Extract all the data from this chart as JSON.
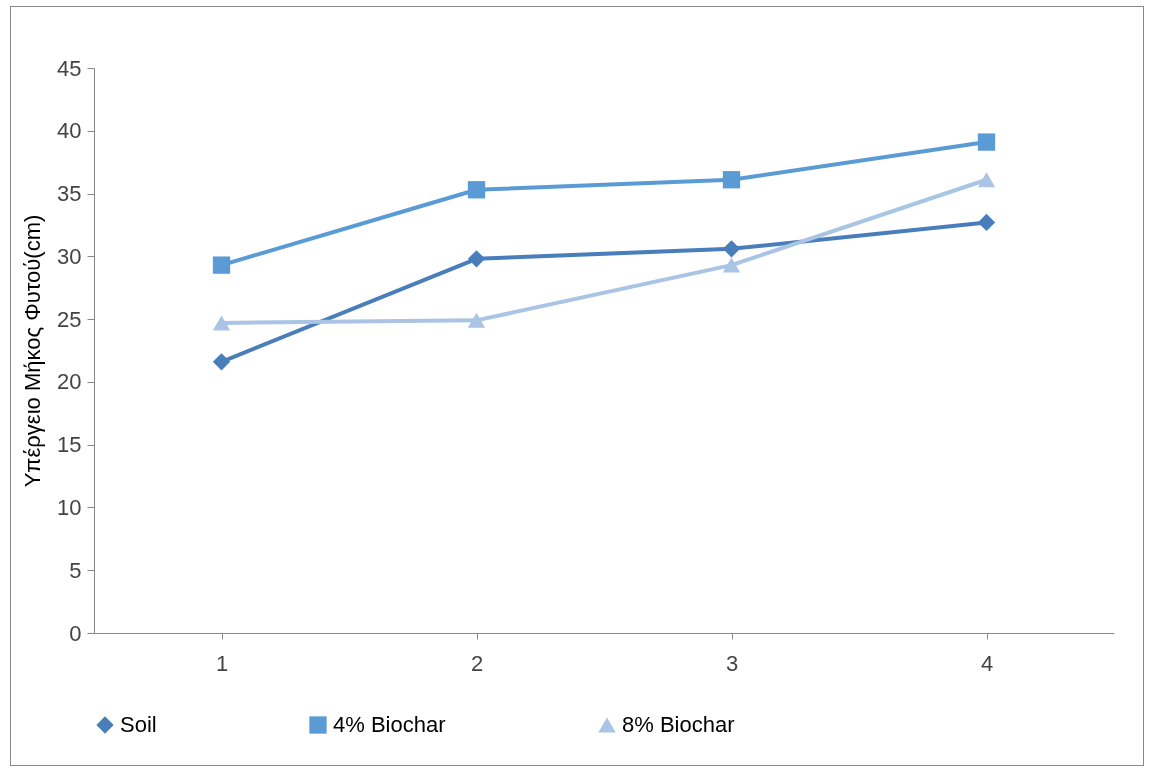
{
  "chart_data": {
    "type": "line",
    "ylabel": "Υπέργειο Μήκος Φυτού(cm)",
    "categories": [
      "1",
      "2",
      "3",
      "4"
    ],
    "series": [
      {
        "name": "Soil",
        "color": "#4a7ebb",
        "marker": "diamond",
        "values": [
          21.6,
          29.8,
          30.6,
          32.7
        ]
      },
      {
        "name": "4% Biochar",
        "color": "#5b9bd5",
        "marker": "square",
        "values": [
          29.3,
          35.3,
          36.1,
          39.1
        ]
      },
      {
        "name": "8% Biochar",
        "color": "#a9c4e4",
        "marker": "triangle",
        "values": [
          24.7,
          24.9,
          29.3,
          36.1
        ]
      }
    ],
    "ylim": [
      0,
      45
    ],
    "yticks": [
      0,
      5,
      10,
      15,
      20,
      25,
      30,
      35,
      40,
      45
    ],
    "grid": false,
    "legend": "bottom",
    "line_style": "solid"
  }
}
